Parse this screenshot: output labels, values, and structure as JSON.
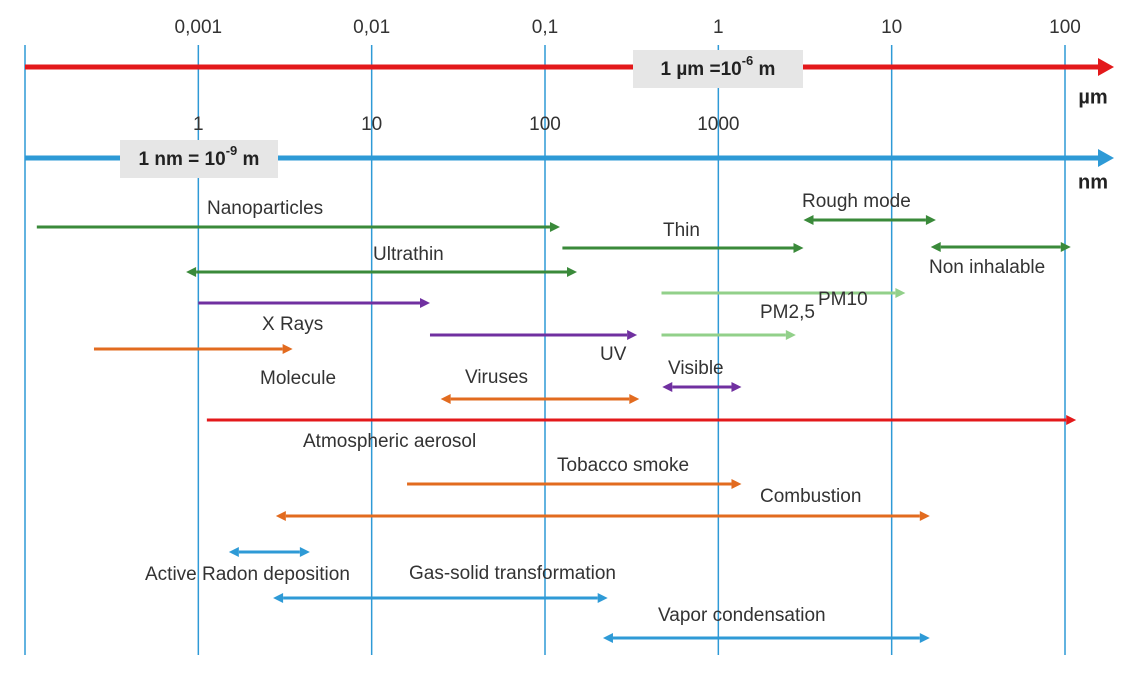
{
  "micrometer_axis": {
    "unit": "µm",
    "box": {
      "text": "1 µm =10",
      "exponent": "-6",
      "suffix": " m"
    },
    "xlim": [
      0.0001,
      100
    ],
    "log": true,
    "color": "#e3191b",
    "ticks": [
      {
        "value": 0.001,
        "label": "0,001"
      },
      {
        "value": 0.01,
        "label": "0,01"
      },
      {
        "value": 0.1,
        "label": "0,1"
      },
      1,
      10,
      100
    ]
  },
  "nanometer_axis": {
    "unit": "nm",
    "box": {
      "text": "1 nm = 10",
      "exponent": "-9",
      "suffix": " m"
    },
    "xlim": [
      0.1,
      100000
    ],
    "log": true,
    "color": "#2e9ad6",
    "ticks": [
      1,
      10,
      100,
      1000
    ]
  },
  "ranges": [
    {
      "label": "Nanoparticles",
      "from": 0.000117,
      "to": 0.122,
      "heads": "right",
      "color": "#3a8a3a"
    },
    {
      "label": "Thin",
      "from": 0.126,
      "to": 3.1,
      "heads": "right",
      "color": "#3a8a3a"
    },
    {
      "label": "Rough mode",
      "from": 3.1,
      "to": 18,
      "heads": "both",
      "color": "#3a8a3a"
    },
    {
      "label": "Non inhalable",
      "from": 16.8,
      "to": 108,
      "heads": "both",
      "color": "#3a8a3a"
    },
    {
      "label": "Ultrathin",
      "from": 0.00085,
      "to": 0.153,
      "heads": "both",
      "color": "#3a8a3a"
    },
    {
      "label": "PM10",
      "from": 0.47,
      "to": 12,
      "heads": "right",
      "color": "#92d08a"
    },
    {
      "label": "PM2,5",
      "from": 0.47,
      "to": 2.8,
      "heads": "right",
      "color": "#92d08a"
    },
    {
      "label": "X Rays",
      "from": 0.001,
      "to": 0.0217,
      "heads": "right",
      "color": "#7030a0"
    },
    {
      "label": "UV",
      "from": 0.0217,
      "to": 0.34,
      "heads": "right",
      "color": "#7030a0"
    },
    {
      "label": "Molecule",
      "from": 0.00025,
      "to": 0.0035,
      "heads": "right",
      "color": "#e26b1f"
    },
    {
      "label": "Viruses",
      "from": 0.025,
      "to": 0.35,
      "heads": "both",
      "color": "#e26b1f"
    },
    {
      "label": "Visible",
      "from": 0.475,
      "to": 1.36,
      "heads": "both",
      "color": "#7030a0"
    },
    {
      "label": "Atmospheric aerosol",
      "from": 0.00112,
      "to": 116,
      "heads": "right",
      "color": "#e3191b"
    },
    {
      "label": "Tobacco smoke",
      "from": 0.016,
      "to": 1.36,
      "heads": "right",
      "color": "#e26b1f"
    },
    {
      "label": "Combustion",
      "from": 0.0028,
      "to": 16.6,
      "heads": "both",
      "color": "#e26b1f"
    },
    {
      "label": "Active Radon deposition",
      "from": 0.0015,
      "to": 0.0044,
      "heads": "both",
      "color": "#2e9ad6"
    },
    {
      "label": "Gas-solid transformation",
      "from": 0.0027,
      "to": 0.23,
      "heads": "both",
      "color": "#2e9ad6"
    },
    {
      "label": "Vapor condensation",
      "from": 0.216,
      "to": 16.6,
      "heads": "both",
      "color": "#2e9ad6"
    }
  ]
}
